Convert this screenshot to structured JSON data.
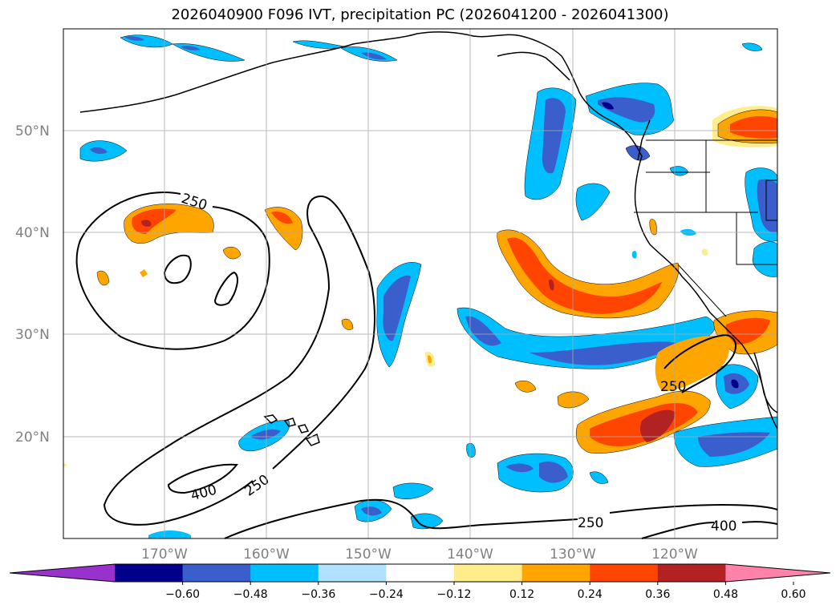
{
  "title": "2026040900 F096 IVT, precipitation PC (2026041200 - 2026041300)",
  "lat_labels": [
    "50°N",
    "40°N",
    "30°N",
    "20°N"
  ],
  "lon_labels": [
    "170°W",
    "160°W",
    "150°W",
    "140°W",
    "130°W",
    "120°W"
  ],
  "contour_labels": {
    "a": "250",
    "b": "400",
    "c": "250",
    "d": "250",
    "e": "250",
    "f": "400"
  },
  "colorbar": {
    "ticks": [
      "−0.60",
      "−0.48",
      "−0.36",
      "−0.24",
      "−0.12",
      "0.12",
      "0.24",
      "0.36",
      "0.48",
      "0.60"
    ],
    "colors": [
      "#9932cc",
      "#00008b",
      "#3a5fcd",
      "#00bfff",
      "#b0e2ff",
      "#ffffff",
      "#ffec8b",
      "#ffa500",
      "#ff4500",
      "#b22222",
      "#ff82ab"
    ]
  }
}
